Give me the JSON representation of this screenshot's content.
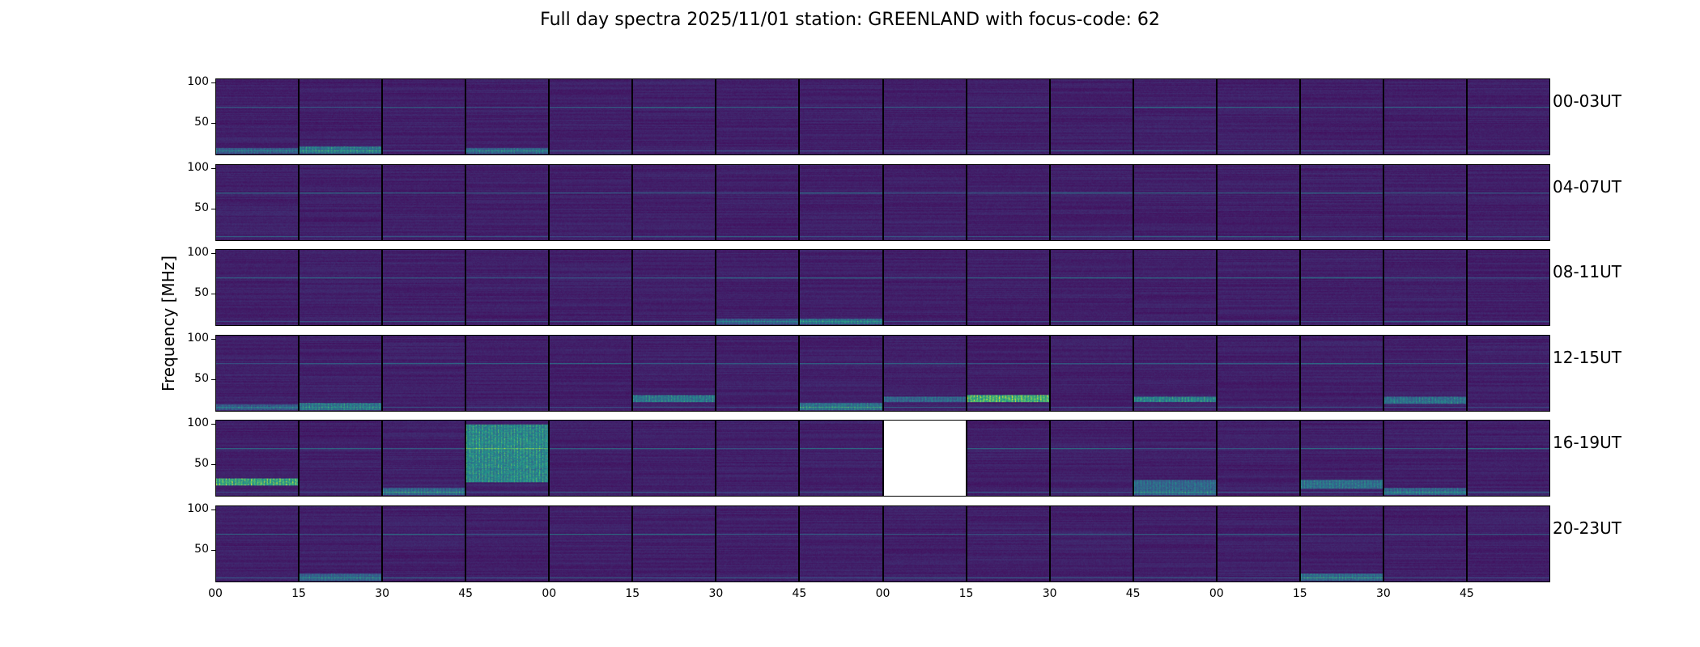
{
  "title": "Full day spectra 2025/11/01 station: GREENLAND with focus-code: 62",
  "chart_data": {
    "type": "heatmap",
    "title": "Full day spectra 2025/11/01 station: GREENLAND with focus-code: 62",
    "ylabel": "Frequency [MHz]",
    "xlabel": "",
    "ylim": [
      10,
      105
    ],
    "yticks": [
      "100",
      "50"
    ],
    "xticks": [
      "00",
      "15",
      "30",
      "45",
      "00",
      "15",
      "30",
      "45",
      "00",
      "15",
      "30",
      "45",
      "00",
      "15",
      "30",
      "45"
    ],
    "row_labels": [
      "00-03UT",
      "04-07UT",
      "08-11UT",
      "12-15UT",
      "16-19UT",
      "20-23UT"
    ],
    "colormap": [
      "#440154",
      "#3b528b",
      "#21918c",
      "#5ec962",
      "#fde725"
    ],
    "panels_per_row": 16,
    "missing_panels": [
      {
        "row": 4,
        "col": 8
      }
    ],
    "bursts": [
      {
        "row": 0,
        "col": 0,
        "fmin": 12,
        "fmax": 18,
        "level": 0.3
      },
      {
        "row": 0,
        "col": 1,
        "fmin": 12,
        "fmax": 20,
        "level": 0.45
      },
      {
        "row": 0,
        "col": 3,
        "fmin": 12,
        "fmax": 18,
        "level": 0.35
      },
      {
        "row": 2,
        "col": 6,
        "fmin": 12,
        "fmax": 18,
        "level": 0.3
      },
      {
        "row": 2,
        "col": 7,
        "fmin": 12,
        "fmax": 18,
        "level": 0.4
      },
      {
        "row": 3,
        "col": 0,
        "fmin": 12,
        "fmax": 18,
        "level": 0.3
      },
      {
        "row": 3,
        "col": 1,
        "fmin": 12,
        "fmax": 20,
        "level": 0.45
      },
      {
        "row": 3,
        "col": 5,
        "fmin": 22,
        "fmax": 30,
        "level": 0.45
      },
      {
        "row": 3,
        "col": 7,
        "fmin": 12,
        "fmax": 20,
        "level": 0.4
      },
      {
        "row": 3,
        "col": 8,
        "fmin": 22,
        "fmax": 28,
        "level": 0.35
      },
      {
        "row": 3,
        "col": 9,
        "fmin": 22,
        "fmax": 30,
        "level": 0.8
      },
      {
        "row": 3,
        "col": 11,
        "fmin": 22,
        "fmax": 28,
        "level": 0.5
      },
      {
        "row": 3,
        "col": 14,
        "fmin": 20,
        "fmax": 28,
        "level": 0.4
      },
      {
        "row": 4,
        "col": 0,
        "fmin": 24,
        "fmax": 32,
        "level": 0.75
      },
      {
        "row": 4,
        "col": 3,
        "fmin": 28,
        "fmax": 100,
        "level": 0.55
      },
      {
        "row": 4,
        "col": 2,
        "fmin": 12,
        "fmax": 20,
        "level": 0.35
      },
      {
        "row": 4,
        "col": 11,
        "fmin": 12,
        "fmax": 30,
        "level": 0.35
      },
      {
        "row": 4,
        "col": 13,
        "fmin": 20,
        "fmax": 30,
        "level": 0.4
      },
      {
        "row": 4,
        "col": 14,
        "fmin": 12,
        "fmax": 20,
        "level": 0.35
      },
      {
        "row": 5,
        "col": 1,
        "fmin": 12,
        "fmax": 20,
        "level": 0.3
      },
      {
        "row": 5,
        "col": 13,
        "fmin": 12,
        "fmax": 20,
        "level": 0.35
      }
    ],
    "lines": [
      {
        "freq": 70,
        "level": 0.35
      },
      {
        "freq": 15,
        "level": 0.25
      }
    ]
  }
}
